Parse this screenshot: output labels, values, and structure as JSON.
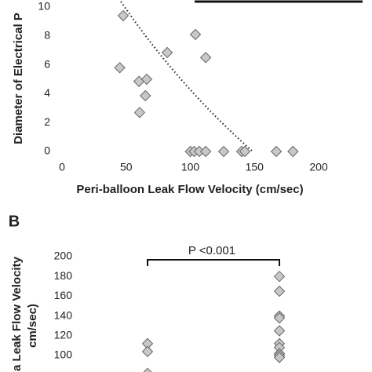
{
  "chart_data": [
    {
      "type": "scatter",
      "ylabel": "Diameter of Electrical P",
      "xlabel": "Peri-balloon Leak Flow Velocity (cm/sec)",
      "x": [
        47.7,
        45,
        82,
        104,
        112,
        60,
        66,
        65,
        60.5,
        100,
        103,
        107,
        112,
        126,
        140,
        142.5,
        167,
        180
      ],
      "values": [
        9.4,
        5.8,
        6.85,
        8.1,
        6.5,
        4.85,
        5.0,
        3.86,
        2.7,
        0,
        0,
        0,
        0,
        0,
        0,
        0,
        0,
        0
      ],
      "color": "#c8c8c8",
      "xlim": [
        0,
        200
      ],
      "xticks": [
        0,
        50,
        100,
        150,
        200
      ],
      "ylim": [
        0,
        10
      ],
      "yticks": [
        0,
        2,
        4,
        6,
        8,
        10
      ]
    },
    {
      "type": "strip",
      "panel": "B",
      "ylabel": [
        "a Leak Flow Velocity",
        "cm/sec)"
      ],
      "categories": [
        null,
        null
      ],
      "groups": [
        [
          112,
          104,
          82
        ],
        [
          180,
          165,
          140,
          138,
          125,
          112,
          108,
          102,
          100,
          98
        ]
      ],
      "color": "#c8c8c8",
      "annotation": "P <0.001",
      "ylim": [
        100,
        200
      ],
      "yticks": [
        100,
        120,
        140,
        160,
        180,
        200
      ]
    }
  ]
}
